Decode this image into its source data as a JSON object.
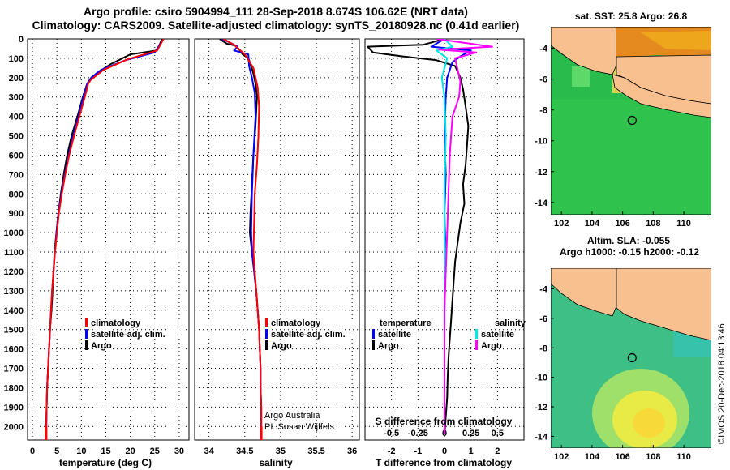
{
  "header": {
    "title1": "Argo profile: csiro 5904994_111 28-Sep-2018 8.674S 106.62E (NRT data)",
    "title2": "Climatology: CARS2009. Satellite-adjusted climatology: synTS_20180928.nc (0.41d earlier)"
  },
  "credit": "Argo Australia",
  "pi": "PI: Susan Wijffels",
  "imos_stamp": "©IMOS 20-Dec-2018 04:13:46",
  "colors": {
    "argo": "#000000",
    "climatology": "#ff0000",
    "satellite": "#0000ff",
    "sat_salinity": "#00e5e5",
    "salinity_diff": "#ff00ff",
    "land": "#f9c08f"
  },
  "chart_data": [
    {
      "type": "line",
      "name": "temperature-profile",
      "xlabel": "temperature (deg C)",
      "xlim": [
        -1,
        32
      ],
      "xticks": [
        0,
        5,
        10,
        15,
        20,
        25,
        30
      ],
      "ylim": [
        2070,
        0
      ],
      "yticks": [
        0,
        100,
        200,
        300,
        400,
        500,
        600,
        700,
        800,
        900,
        1000,
        1100,
        1200,
        1300,
        1400,
        1500,
        1600,
        1700,
        1800,
        1900,
        2000
      ],
      "legend": [
        "climatology",
        "satellite-adj. clim.",
        "Argo"
      ],
      "series": [
        {
          "name": "Argo",
          "color": "#000000",
          "points": [
            [
              26.5,
              0
            ],
            [
              25.5,
              60
            ],
            [
              20,
              80
            ],
            [
              16,
              130
            ],
            [
              13,
              180
            ],
            [
              11.2,
              230
            ],
            [
              10.3,
              300
            ],
            [
              9.2,
              400
            ],
            [
              8.0,
              500
            ],
            [
              7.1,
              600
            ],
            [
              6.4,
              700
            ],
            [
              5.8,
              800
            ],
            [
              5.3,
              900
            ],
            [
              4.9,
              1000
            ],
            [
              4.5,
              1100
            ],
            [
              4.3,
              1200
            ],
            [
              4.1,
              1300
            ],
            [
              3.9,
              1400
            ],
            [
              3.6,
              1500
            ],
            [
              3.4,
              1600
            ],
            [
              3.2,
              1700
            ],
            [
              3.0,
              1800
            ],
            [
              2.9,
              1900
            ],
            [
              2.8,
              2040
            ]
          ]
        },
        {
          "name": "satellite-adj. clim.",
          "color": "#0000ff",
          "points": [
            [
              26.8,
              0
            ],
            [
              25,
              70
            ],
            [
              19,
              110
            ],
            [
              14,
              160
            ],
            [
              12,
              200
            ],
            [
              11.2,
              230
            ],
            [
              10.4,
              300
            ],
            [
              9.4,
              400
            ],
            [
              8.3,
              500
            ],
            [
              7.4,
              600
            ],
            [
              6.6,
              700
            ],
            [
              5.9,
              800
            ],
            [
              5.3,
              900
            ],
            [
              4.9,
              1000
            ],
            [
              4.6,
              1100
            ],
            [
              4.3,
              1200
            ],
            [
              4.0,
              1300
            ],
            [
              3.8,
              1400
            ],
            [
              3.6,
              1500
            ],
            [
              3.4,
              1600
            ],
            [
              3.2,
              1700
            ],
            [
              3.0,
              1800
            ],
            [
              2.9,
              1900
            ],
            [
              2.8,
              2040
            ]
          ]
        },
        {
          "name": "climatology",
          "color": "#ff0000",
          "points": [
            [
              26.8,
              0
            ],
            [
              25.5,
              60
            ],
            [
              19.5,
              105
            ],
            [
              14.5,
              160
            ],
            [
              12,
              210
            ],
            [
              11.4,
              230
            ],
            [
              10.7,
              300
            ],
            [
              9.6,
              400
            ],
            [
              8.5,
              500
            ],
            [
              7.5,
              600
            ],
            [
              6.7,
              700
            ],
            [
              6.0,
              800
            ],
            [
              5.4,
              900
            ],
            [
              5.0,
              1000
            ],
            [
              4.6,
              1100
            ],
            [
              4.3,
              1200
            ],
            [
              4.0,
              1300
            ],
            [
              3.8,
              1400
            ],
            [
              3.6,
              1500
            ],
            [
              3.4,
              1600
            ],
            [
              3.2,
              1700
            ],
            [
              3.0,
              1800
            ],
            [
              2.9,
              1900
            ],
            [
              2.8,
              2040
            ]
          ]
        }
      ]
    },
    {
      "type": "line",
      "name": "salinity-profile",
      "xlabel": "salinity",
      "xlim": [
        33.8,
        36.1
      ],
      "xticks": [
        34,
        34.5,
        35,
        35.5,
        36
      ],
      "ylim": [
        2070,
        0
      ],
      "legend": [
        "climatology",
        "satellite-adj. clim.",
        "Argo"
      ],
      "series": [
        {
          "name": "Argo",
          "color": "#000000",
          "points": [
            [
              34.15,
              0
            ],
            [
              34.25,
              25
            ],
            [
              34.38,
              35
            ],
            [
              34.43,
              60
            ],
            [
              34.47,
              80
            ],
            [
              34.55,
              100
            ],
            [
              34.58,
              130
            ],
            [
              34.62,
              180
            ],
            [
              34.65,
              230
            ],
            [
              34.67,
              300
            ],
            [
              34.65,
              450
            ],
            [
              34.62,
              600
            ],
            [
              34.6,
              750
            ],
            [
              34.58,
              900
            ],
            [
              34.57,
              1000
            ],
            [
              34.6,
              1100
            ],
            [
              34.63,
              1200
            ],
            [
              34.66,
              1300
            ],
            [
              34.68,
              1400
            ],
            [
              34.7,
              1500
            ],
            [
              34.71,
              1600
            ],
            [
              34.72,
              1700
            ],
            [
              34.72,
              1800
            ],
            [
              34.73,
              1900
            ],
            [
              34.73,
              2040
            ]
          ]
        },
        {
          "name": "satellite-adj. clim.",
          "color": "#0000ff",
          "points": [
            [
              34.18,
              0
            ],
            [
              34.3,
              20
            ],
            [
              34.4,
              40
            ],
            [
              34.35,
              60
            ],
            [
              34.55,
              80
            ],
            [
              34.56,
              140
            ],
            [
              34.6,
              200
            ],
            [
              34.64,
              280
            ],
            [
              34.65,
              400
            ],
            [
              34.62,
              600
            ],
            [
              34.6,
              800
            ],
            [
              34.59,
              1000
            ],
            [
              34.6,
              1100
            ],
            [
              34.63,
              1200
            ],
            [
              34.66,
              1300
            ],
            [
              34.68,
              1400
            ],
            [
              34.7,
              1500
            ],
            [
              34.71,
              1600
            ],
            [
              34.72,
              1700
            ],
            [
              34.72,
              1800
            ],
            [
              34.73,
              1900
            ],
            [
              34.73,
              2040
            ]
          ]
        },
        {
          "name": "climatology",
          "color": "#ff0000",
          "points": [
            [
              34.2,
              0
            ],
            [
              34.35,
              30
            ],
            [
              34.5,
              80
            ],
            [
              34.62,
              150
            ],
            [
              34.68,
              250
            ],
            [
              34.7,
              350
            ],
            [
              34.69,
              500
            ],
            [
              34.67,
              650
            ],
            [
              34.64,
              800
            ],
            [
              34.63,
              950
            ],
            [
              34.62,
              1100
            ],
            [
              34.64,
              1200
            ],
            [
              34.66,
              1300
            ],
            [
              34.68,
              1400
            ],
            [
              34.7,
              1500
            ],
            [
              34.71,
              1600
            ],
            [
              34.72,
              1700
            ],
            [
              34.72,
              1800
            ],
            [
              34.73,
              1900
            ],
            [
              34.73,
              2040
            ]
          ]
        }
      ]
    },
    {
      "type": "line",
      "name": "difference-profile",
      "xlabel": "T difference from climatology",
      "xlabel2": "S difference from climatology",
      "xlim": [
        -3.0,
        3.0
      ],
      "xticks": [
        -2,
        -1,
        0,
        1,
        2
      ],
      "xticks2": [
        "-0.5",
        "-0.25",
        "0",
        "0.25",
        "0.5"
      ],
      "xticks2_pos": [
        -2,
        -1,
        0,
        1,
        2
      ],
      "ylim": [
        2070,
        0
      ],
      "legend_left_title": "temperature",
      "legend_right_title": "salinity",
      "legend_left": [
        "satellite",
        "Argo"
      ],
      "legend_right": [
        "satellite",
        "Argo"
      ],
      "series": [
        {
          "name": "Argo-T",
          "color": "#000000",
          "points": [
            [
              0,
              0
            ],
            [
              -0.8,
              30
            ],
            [
              -2.9,
              40
            ],
            [
              -2.7,
              70
            ],
            [
              -1.6,
              90
            ],
            [
              -0.3,
              110
            ],
            [
              0.4,
              140
            ],
            [
              0.6,
              200
            ],
            [
              0.7,
              260
            ],
            [
              0.8,
              350
            ],
            [
              0.9,
              450
            ],
            [
              0.85,
              550
            ],
            [
              0.8,
              650
            ],
            [
              0.7,
              750
            ],
            [
              0.75,
              850
            ],
            [
              0.6,
              950
            ],
            [
              0.5,
              1050
            ],
            [
              0.4,
              1150
            ],
            [
              0.35,
              1250
            ],
            [
              0.3,
              1350
            ],
            [
              0.25,
              1450
            ],
            [
              0.2,
              1550
            ],
            [
              0.15,
              1650
            ],
            [
              0.12,
              1750
            ],
            [
              0.1,
              1850
            ],
            [
              0.05,
              1950
            ],
            [
              0.0,
              2040
            ]
          ]
        },
        {
          "name": "satellite-T",
          "color": "#0000ff",
          "points": [
            [
              0,
              0
            ],
            [
              -0.5,
              40
            ],
            [
              1.0,
              60
            ],
            [
              0.6,
              90
            ],
            [
              0.3,
              120
            ],
            [
              0.1,
              200
            ],
            [
              0.05,
              300
            ],
            [
              0.0,
              500
            ],
            [
              0.05,
              700
            ],
            [
              0.0,
              900
            ],
            [
              0.05,
              1100
            ],
            [
              0.0,
              1400
            ],
            [
              0.0,
              1700
            ],
            [
              0.0,
              2040
            ]
          ]
        },
        {
          "name": "satellite-S",
          "color": "#00e5e5",
          "points": [
            [
              0,
              0
            ],
            [
              0.3,
              40
            ],
            [
              -0.3,
              60
            ],
            [
              0.1,
              100
            ],
            [
              -0.1,
              200
            ],
            [
              0.0,
              300
            ],
            [
              0.05,
              500
            ],
            [
              0.0,
              800
            ],
            [
              0.02,
              1200
            ],
            [
              0.0,
              1600
            ],
            [
              0.0,
              2040
            ]
          ]
        },
        {
          "name": "Argo-S",
          "color": "#ff00ff",
          "points": [
            [
              -0.3,
              0
            ],
            [
              1.8,
              40
            ],
            [
              -0.2,
              55
            ],
            [
              1.2,
              70
            ],
            [
              0.4,
              100
            ],
            [
              0.5,
              160
            ],
            [
              0.6,
              220
            ],
            [
              0.55,
              300
            ],
            [
              0.3,
              400
            ],
            [
              0.2,
              600
            ],
            [
              0.15,
              800
            ],
            [
              0.1,
              1000
            ],
            [
              0.05,
              1200
            ],
            [
              0.0,
              1400
            ],
            [
              0.0,
              1700
            ],
            [
              0.0,
              2040
            ]
          ]
        }
      ]
    },
    {
      "type": "heatmap",
      "name": "sst-map",
      "title": "sat. SST: 25.8 Argo: 26.8",
      "xticks": [
        102,
        104,
        106,
        108,
        110
      ],
      "yticks": [
        -4,
        -6,
        -8,
        -10,
        -12,
        -14
      ],
      "xlim": [
        101.3,
        111.8
      ],
      "ylim": [
        -14.8,
        -2.6
      ],
      "marker": [
        106.62,
        -8.674
      ]
    },
    {
      "type": "heatmap",
      "name": "sla-map",
      "title": "Altim. SLA: -0.055",
      "subtitle": "Argo h1000: -0.15 h2000: -0.12",
      "xticks": [
        102,
        104,
        106,
        108,
        110
      ],
      "yticks": [
        -4,
        -6,
        -8,
        -10,
        -12,
        -14
      ],
      "xlim": [
        101.3,
        111.8
      ],
      "ylim": [
        -14.8,
        -2.6
      ],
      "marker": [
        106.62,
        -8.674
      ]
    }
  ]
}
